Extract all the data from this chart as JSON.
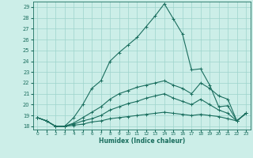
{
  "xlabel": "Humidex (Indice chaleur)",
  "xlim": [
    -0.5,
    23.5
  ],
  "ylim": [
    17.7,
    29.5
  ],
  "yticks": [
    18,
    19,
    20,
    21,
    22,
    23,
    24,
    25,
    26,
    27,
    28,
    29
  ],
  "xticks": [
    0,
    1,
    2,
    3,
    4,
    5,
    6,
    7,
    8,
    9,
    10,
    11,
    12,
    13,
    14,
    15,
    16,
    17,
    18,
    19,
    20,
    21,
    22,
    23
  ],
  "background_color": "#cceee8",
  "grid_color": "#9dd4cc",
  "line_color": "#1a6e5e",
  "lines": [
    {
      "x": [
        0,
        1,
        2,
        3,
        4,
        5,
        6,
        7,
        8,
        9,
        10,
        11,
        12,
        13,
        14,
        15,
        16,
        17,
        18,
        19,
        20,
        21,
        22,
        23
      ],
      "y": [
        18.8,
        18.5,
        18.0,
        18.0,
        18.8,
        20.0,
        21.5,
        22.2,
        24.0,
        24.8,
        25.5,
        26.2,
        27.2,
        28.2,
        29.3,
        27.9,
        26.5,
        23.2,
        23.3,
        21.8,
        19.8,
        19.9,
        18.5,
        19.2
      ]
    },
    {
      "x": [
        0,
        1,
        2,
        3,
        4,
        5,
        6,
        7,
        8,
        9,
        10,
        11,
        12,
        13,
        14,
        15,
        16,
        17,
        18,
        19,
        20,
        21,
        22,
        23
      ],
      "y": [
        18.8,
        18.5,
        18.0,
        18.0,
        18.3,
        18.8,
        19.3,
        19.8,
        20.5,
        21.0,
        21.3,
        21.6,
        21.8,
        22.0,
        22.2,
        21.8,
        21.5,
        21.0,
        22.0,
        21.5,
        20.8,
        20.5,
        18.5,
        19.2
      ]
    },
    {
      "x": [
        0,
        1,
        2,
        3,
        4,
        5,
        6,
        7,
        8,
        9,
        10,
        11,
        12,
        13,
        14,
        15,
        16,
        17,
        18,
        19,
        20,
        21,
        22,
        23
      ],
      "y": [
        18.8,
        18.5,
        18.0,
        18.0,
        18.2,
        18.5,
        18.7,
        19.0,
        19.5,
        19.8,
        20.1,
        20.3,
        20.6,
        20.8,
        21.0,
        20.6,
        20.3,
        20.0,
        20.5,
        20.0,
        19.5,
        19.2,
        18.5,
        19.2
      ]
    },
    {
      "x": [
        0,
        1,
        2,
        3,
        4,
        5,
        6,
        7,
        8,
        9,
        10,
        11,
        12,
        13,
        14,
        15,
        16,
        17,
        18,
        19,
        20,
        21,
        22,
        23
      ],
      "y": [
        18.8,
        18.5,
        18.0,
        18.0,
        18.1,
        18.2,
        18.4,
        18.5,
        18.7,
        18.8,
        18.9,
        19.0,
        19.1,
        19.2,
        19.3,
        19.2,
        19.1,
        19.0,
        19.1,
        19.0,
        18.9,
        18.7,
        18.5,
        19.2
      ]
    }
  ]
}
